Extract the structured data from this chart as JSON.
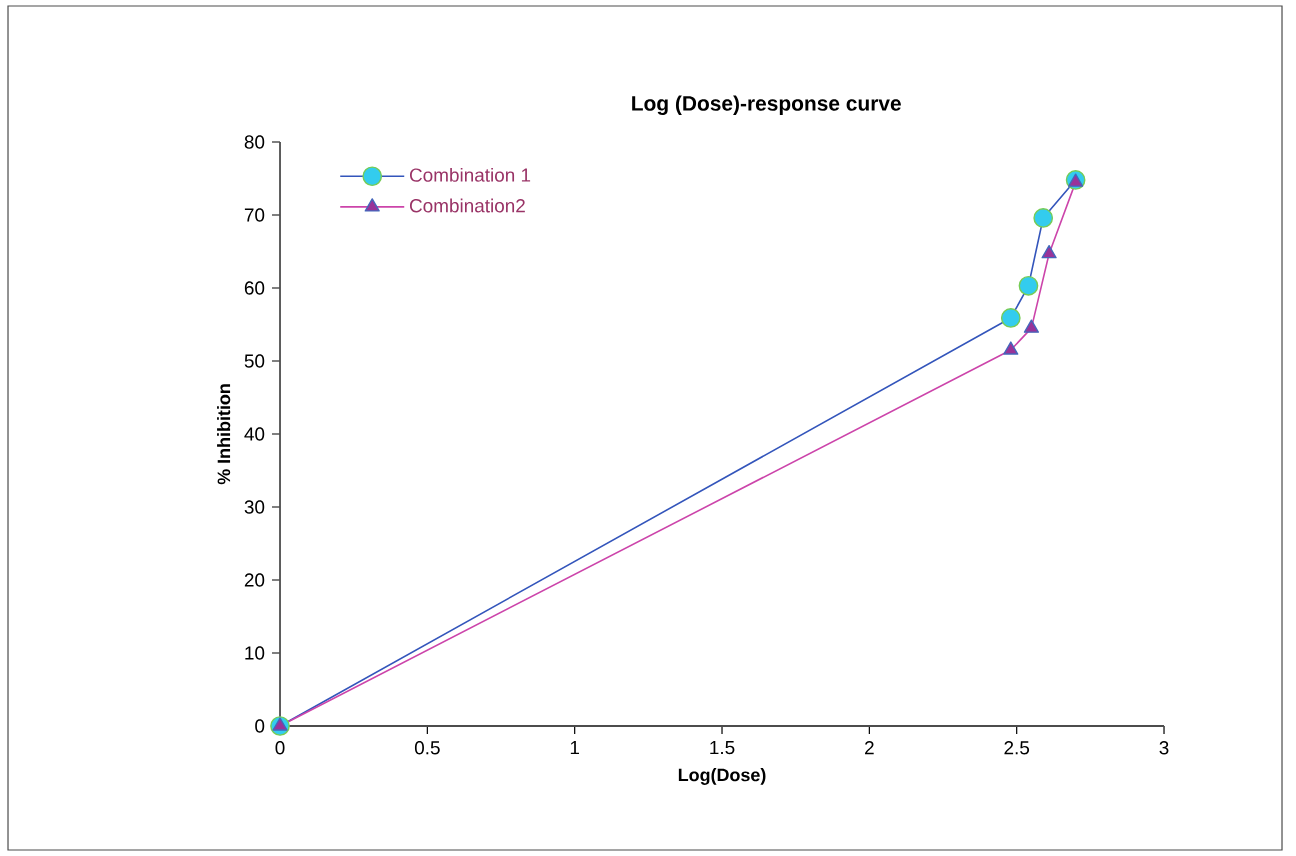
{
  "chart_data": {
    "type": "line",
    "title": "Log (Dose)-response curve",
    "xlabel": "Log(Dose)",
    "ylabel": "% Inhibition",
    "xlim": [
      0,
      3
    ],
    "xticks": [
      0,
      0.5,
      1,
      1.5,
      2,
      2.5,
      3
    ],
    "ylim": [
      0,
      80
    ],
    "yticks": [
      0,
      10,
      20,
      30,
      40,
      50,
      60,
      70,
      80
    ],
    "grid": false,
    "legend": "top left",
    "series": [
      {
        "name": "Combination 1",
        "color": "#3355bb",
        "marker": "circle",
        "x": [
          0,
          2.48,
          2.54,
          2.59,
          2.7
        ],
        "values": [
          0,
          55.9,
          60.3,
          69.6,
          74.8
        ]
      },
      {
        "name": "Combination2",
        "color": "#cc44aa",
        "marker": "triangle",
        "x": [
          0,
          2.48,
          2.55,
          2.61,
          2.7
        ],
        "values": [
          0,
          51.5,
          54.5,
          64.7,
          74.5
        ]
      }
    ]
  }
}
